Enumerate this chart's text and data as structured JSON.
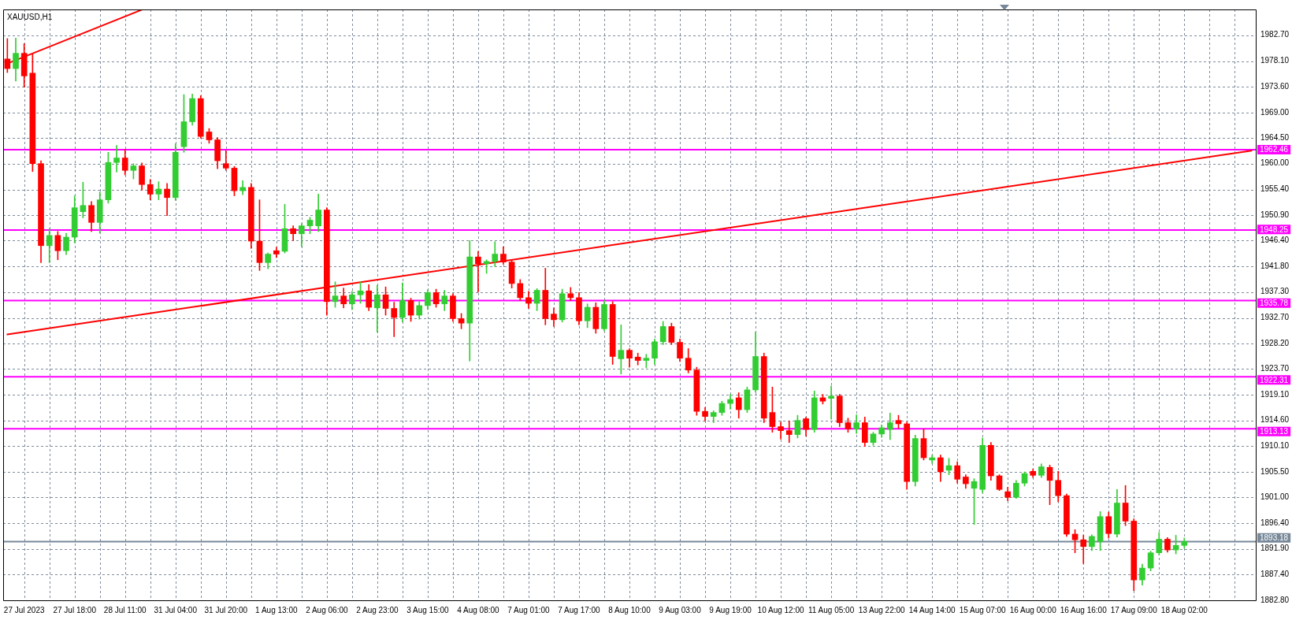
{
  "chart_data": {
    "type": "candlestick",
    "title": "XAUUSD,H1",
    "categories": [
      null,
      null,
      "27 Jul 2023",
      null,
      null,
      null,
      null,
      null,
      "27 Jul 18:00",
      null,
      null,
      null,
      null,
      null,
      "28 Jul 11:00",
      null,
      null,
      null,
      null,
      null,
      "31 Jul 04:00",
      null,
      null,
      null,
      null,
      null,
      "31 Jul 20:00",
      null,
      null,
      null,
      null,
      null,
      "1 Aug 13:00",
      null,
      null,
      null,
      null,
      null,
      "2 Aug 06:00",
      null,
      null,
      null,
      null,
      null,
      "2 Aug 23:00",
      null,
      null,
      null,
      null,
      null,
      "3 Aug 15:00",
      null,
      null,
      null,
      null,
      null,
      "4 Aug 08:00",
      null,
      null,
      null,
      null,
      null,
      "7 Aug 01:00",
      null,
      null,
      null,
      null,
      null,
      "7 Aug 17:00",
      null,
      null,
      null,
      null,
      null,
      "8 Aug 10:00",
      null,
      null,
      null,
      null,
      null,
      "9 Aug 03:00",
      null,
      null,
      null,
      null,
      null,
      "9 Aug 19:00",
      null,
      null,
      null,
      null,
      null,
      "10 Aug 12:00",
      null,
      null,
      null,
      null,
      null,
      "11 Aug 05:00",
      null,
      null,
      null,
      null,
      null,
      "13 Aug 22:00",
      null,
      null,
      null,
      null,
      null,
      "14 Aug 14:00",
      null,
      null,
      null,
      null,
      null,
      "15 Aug 07:00",
      null,
      null,
      null,
      null,
      null,
      "16 Aug 00:00",
      null,
      null,
      null,
      null,
      null,
      "16 Aug 16:00",
      null,
      null,
      null,
      null,
      null,
      "17 Aug 09:00",
      null,
      null,
      null,
      null,
      null,
      "18 Aug 02:00",
      null,
      null,
      null,
      null,
      null,
      null,
      null,
      null
    ],
    "ohlc": [
      [
        1978.5,
        1982.1,
        1976.1,
        1976.8
      ],
      [
        1976.8,
        1982.2,
        1974.6,
        1979.5
      ],
      [
        1979.5,
        1981.2,
        1973.5,
        1975.5
      ],
      [
        1976.0,
        1979.4,
        1958.6,
        1960.0
      ],
      [
        1960.0,
        1960.5,
        1942.5,
        1945.5
      ],
      [
        1945.5,
        1948.5,
        1942.5,
        1947.3
      ],
      [
        1947.3,
        1948.0,
        1943.0,
        1944.6
      ],
      [
        1944.6,
        1947.7,
        1943.9,
        1947.0
      ],
      [
        1947.0,
        1954.3,
        1946.0,
        1952.2
      ],
      [
        1951.5,
        1956.7,
        1950.4,
        1952.6
      ],
      [
        1952.6,
        1953.3,
        1948.0,
        1949.6
      ],
      [
        1949.6,
        1955.0,
        1947.7,
        1953.6
      ],
      [
        1953.6,
        1962.0,
        1953.0,
        1960.2
      ],
      [
        1960.2,
        1963.2,
        1958.5,
        1961.0
      ],
      [
        1961.0,
        1962.5,
        1958.0,
        1958.8
      ],
      [
        1958.8,
        1960.0,
        1957.3,
        1959.6
      ],
      [
        1959.6,
        1960.1,
        1955.3,
        1956.3
      ],
      [
        1956.3,
        1957.2,
        1953.6,
        1954.6
      ],
      [
        1954.6,
        1956.8,
        1953.6,
        1955.5
      ],
      [
        1955.5,
        1956.5,
        1950.8,
        1954.0
      ],
      [
        1954.0,
        1963.5,
        1953.5,
        1962.0
      ],
      [
        1963.0,
        1972.2,
        1962.0,
        1967.4
      ],
      [
        1967.4,
        1972.3,
        1966.8,
        1971.5
      ],
      [
        1971.5,
        1972.0,
        1964.5,
        1964.8
      ],
      [
        1965.6,
        1966.2,
        1963.6,
        1964.2
      ],
      [
        1964.2,
        1964.6,
        1959.1,
        1960.5
      ],
      [
        1960.0,
        1962.3,
        1958.8,
        1959.2
      ],
      [
        1959.2,
        1959.5,
        1954.3,
        1955.2
      ],
      [
        1955.2,
        1957.0,
        1954.5,
        1955.8
      ],
      [
        1955.8,
        1956.5,
        1945.0,
        1946.3
      ],
      [
        1946.3,
        1953.6,
        1941.1,
        1942.5
      ],
      [
        1942.5,
        1944.2,
        1941.4,
        1944.0
      ],
      [
        1944.6,
        1945.2,
        1943.4,
        1944.0
      ],
      [
        1944.5,
        1952.8,
        1944.2,
        1948.5
      ],
      [
        1948.5,
        1949.0,
        1946.4,
        1947.6
      ],
      [
        1947.6,
        1949.4,
        1945.3,
        1949.0
      ],
      [
        1949.0,
        1950.5,
        1947.6,
        1950.0
      ],
      [
        1949.0,
        1954.6,
        1948.0,
        1951.8
      ],
      [
        1951.8,
        1952.2,
        1933.2,
        1935.6
      ],
      [
        1935.6,
        1939.1,
        1934.6,
        1936.6
      ],
      [
        1936.6,
        1938.0,
        1934.5,
        1935.2
      ],
      [
        1935.2,
        1937.4,
        1934.2,
        1936.8
      ],
      [
        1936.8,
        1939.1,
        1935.3,
        1937.5
      ],
      [
        1937.5,
        1938.6,
        1934.0,
        1934.6
      ],
      [
        1934.5,
        1938.5,
        1930.2,
        1936.8
      ],
      [
        1936.8,
        1938.2,
        1933.2,
        1934.4
      ],
      [
        1934.4,
        1935.5,
        1929.4,
        1932.8
      ],
      [
        1932.8,
        1938.9,
        1932.0,
        1935.8
      ],
      [
        1935.8,
        1936.2,
        1932.1,
        1933.2
      ],
      [
        1933.2,
        1935.6,
        1932.5,
        1934.9
      ],
      [
        1934.9,
        1937.7,
        1934.2,
        1937.2
      ],
      [
        1937.2,
        1937.8,
        1934.6,
        1935.2
      ],
      [
        1935.2,
        1937.6,
        1934.0,
        1936.6
      ],
      [
        1936.6,
        1937.0,
        1932.1,
        1932.6
      ],
      [
        1932.6,
        1933.5,
        1930.8,
        1931.8
      ],
      [
        1931.8,
        1946.4,
        1925.1,
        1943.5
      ],
      [
        1943.5,
        1944.5,
        1937.3,
        1942.3
      ],
      [
        1942.3,
        1943.0,
        1940.6,
        1942.7
      ],
      [
        1942.7,
        1946.2,
        1941.8,
        1944.0
      ],
      [
        1944.0,
        1945.3,
        1942.2,
        1942.6
      ],
      [
        1942.6,
        1943.0,
        1938.0,
        1938.8
      ],
      [
        1938.8,
        1939.5,
        1935.8,
        1936.3
      ],
      [
        1936.3,
        1937.4,
        1934.4,
        1935.3
      ],
      [
        1935.3,
        1937.9,
        1934.0,
        1937.6
      ],
      [
        1937.6,
        1941.5,
        1931.5,
        1932.6
      ],
      [
        1933.4,
        1934.5,
        1931.2,
        1932.4
      ],
      [
        1932.4,
        1937.8,
        1932.0,
        1937.0
      ],
      [
        1937.0,
        1938.1,
        1935.8,
        1936.3
      ],
      [
        1936.3,
        1937.2,
        1931.5,
        1932.2
      ],
      [
        1932.2,
        1935.2,
        1931.0,
        1934.6
      ],
      [
        1934.6,
        1935.4,
        1930.0,
        1930.8
      ],
      [
        1930.8,
        1935.8,
        1930.4,
        1935.1
      ],
      [
        1935.1,
        1935.6,
        1924.5,
        1925.9
      ],
      [
        1925.5,
        1931.5,
        1922.8,
        1927.0
      ],
      [
        1927.0,
        1927.3,
        1924.0,
        1925.6
      ],
      [
        1925.8,
        1926.5,
        1924.4,
        1925.2
      ],
      [
        1925.2,
        1926.3,
        1923.9,
        1925.6
      ],
      [
        1925.6,
        1929.0,
        1924.5,
        1928.5
      ],
      [
        1928.5,
        1932.1,
        1928.0,
        1931.2
      ],
      [
        1931.2,
        1931.8,
        1928.0,
        1928.4
      ],
      [
        1928.4,
        1929.0,
        1925.0,
        1925.6
      ],
      [
        1925.6,
        1927.3,
        1923.0,
        1923.5
      ],
      [
        1923.5,
        1924.0,
        1915.5,
        1916.2
      ],
      [
        1916.2,
        1916.9,
        1914.5,
        1915.3
      ],
      [
        1915.3,
        1916.3,
        1914.2,
        1916.0
      ],
      [
        1916.0,
        1918.0,
        1915.5,
        1917.6
      ],
      [
        1917.6,
        1919.2,
        1916.6,
        1918.3
      ],
      [
        1918.6,
        1919.5,
        1915.0,
        1916.5
      ],
      [
        1916.5,
        1920.5,
        1916.0,
        1920.0
      ],
      [
        1920.0,
        1930.2,
        1919.6,
        1925.9
      ],
      [
        1925.9,
        1926.5,
        1914.2,
        1915.0
      ],
      [
        1916.0,
        1920.5,
        1912.5,
        1913.5
      ],
      [
        1913.5,
        1914.3,
        1911.3,
        1912.8
      ],
      [
        1912.8,
        1914.5,
        1910.7,
        1912.1
      ],
      [
        1912.1,
        1915.5,
        1911.5,
        1914.6
      ],
      [
        1914.9,
        1915.2,
        1911.8,
        1913.0
      ],
      [
        1913.0,
        1919.8,
        1912.5,
        1918.6
      ],
      [
        1918.6,
        1919.2,
        1917.5,
        1918.0
      ],
      [
        1918.5,
        1920.7,
        1914.8,
        1918.9
      ],
      [
        1918.9,
        1919.2,
        1913.5,
        1914.2
      ],
      [
        1914.2,
        1915.0,
        1912.5,
        1913.1
      ],
      [
        1913.1,
        1915.6,
        1912.3,
        1914.2
      ],
      [
        1914.2,
        1915.2,
        1910.0,
        1910.7
      ],
      [
        1910.7,
        1912.5,
        1910.2,
        1912.2
      ],
      [
        1912.2,
        1913.8,
        1911.6,
        1913.3
      ],
      [
        1913.0,
        1915.9,
        1911.2,
        1914.2
      ],
      [
        1914.6,
        1915.5,
        1913.2,
        1914.0
      ],
      [
        1914.0,
        1914.3,
        1902.4,
        1903.8
      ],
      [
        1903.8,
        1912.0,
        1903.0,
        1911.4
      ],
      [
        1911.4,
        1913.1,
        1907.6,
        1908.0
      ],
      [
        1907.6,
        1908.5,
        1907.0,
        1908.0
      ],
      [
        1908.0,
        1908.5,
        1903.8,
        1905.5
      ],
      [
        1905.8,
        1907.9,
        1905.0,
        1906.6
      ],
      [
        1906.6,
        1907.3,
        1903.5,
        1904.2
      ],
      [
        1904.6,
        1905.0,
        1902.6,
        1903.4
      ],
      [
        1902.6,
        1904.3,
        1896.2,
        1903.8
      ],
      [
        1902.4,
        1911.5,
        1901.8,
        1910.2
      ],
      [
        1910.2,
        1910.7,
        1904.0,
        1904.8
      ],
      [
        1904.8,
        1905.0,
        1902.2,
        1902.4
      ],
      [
        1902.0,
        1902.8,
        1900.4,
        1901.0
      ],
      [
        1901.0,
        1904.0,
        1900.8,
        1903.5
      ],
      [
        1903.5,
        1905.5,
        1903.0,
        1905.2
      ],
      [
        1905.6,
        1906.0,
        1904.5,
        1904.9
      ],
      [
        1904.9,
        1906.9,
        1904.5,
        1906.4
      ],
      [
        1906.3,
        1906.7,
        1899.7,
        1904.0
      ],
      [
        1904.0,
        1905.6,
        1900.2,
        1901.3
      ],
      [
        1901.3,
        1901.6,
        1894.1,
        1894.5
      ],
      [
        1894.5,
        1895.3,
        1891.2,
        1893.5
      ],
      [
        1893.5,
        1894.3,
        1889.3,
        1892.3
      ],
      [
        1892.3,
        1894.4,
        1891.6,
        1894.1
      ],
      [
        1893.2,
        1898.5,
        1891.6,
        1897.6
      ],
      [
        1897.6,
        1898.4,
        1893.8,
        1894.6
      ],
      [
        1894.5,
        1902.4,
        1894.0,
        1900.0
      ],
      [
        1900.0,
        1903.1,
        1896.0,
        1896.8
      ],
      [
        1896.8,
        1897.2,
        1884.5,
        1886.4
      ],
      [
        1886.4,
        1889.2,
        1885.5,
        1888.5
      ],
      [
        1888.5,
        1891.5,
        1888.0,
        1891.2
      ],
      [
        1891.2,
        1894.8,
        1890.8,
        1893.6
      ],
      [
        1893.6,
        1893.9,
        1891.3,
        1891.7
      ],
      [
        1891.7,
        1894.3,
        1891.0,
        1892.5
      ],
      [
        1892.5,
        1893.8,
        1892.0,
        1893.18
      ],
      null,
      null,
      null,
      null,
      null,
      null,
      null,
      null
    ],
    "colors": [
      "#ff0000",
      "#32cd32",
      "#ff0000",
      "#ff0000",
      "#ff0000",
      "#32cd32",
      "#ff0000",
      "#32cd32",
      "#32cd32",
      "#32cd32",
      "#ff0000",
      "#32cd32",
      "#32cd32",
      "#32cd32",
      "#ff0000",
      "#32cd32",
      "#ff0000",
      "#ff0000",
      "#32cd32",
      "#ff0000",
      "#32cd32",
      "#32cd32",
      "#32cd32",
      "#ff0000",
      "#ff0000",
      "#ff0000",
      "#ff0000",
      "#ff0000",
      "#32cd32",
      "#ff0000",
      "#ff0000",
      "#32cd32",
      "#ff0000",
      "#32cd32",
      "#ff0000",
      "#32cd32",
      "#32cd32",
      "#32cd32",
      "#ff0000",
      "#32cd32",
      "#ff0000",
      "#32cd32",
      "#32cd32",
      "#ff0000",
      "#32cd32",
      "#ff0000",
      "#ff0000",
      "#32cd32",
      "#ff0000",
      "#32cd32",
      "#32cd32",
      "#ff0000",
      "#32cd32",
      "#ff0000",
      "#ff0000",
      "#32cd32",
      "#ff0000",
      "#32cd32",
      "#32cd32",
      "#ff0000",
      "#ff0000",
      "#ff0000",
      "#ff0000",
      "#32cd32",
      "#ff0000",
      "#ff0000",
      "#32cd32",
      "#ff0000",
      "#ff0000",
      "#32cd32",
      "#ff0000",
      "#32cd32",
      "#ff0000",
      "#32cd32",
      "#ff0000",
      "#ff0000",
      "#32cd32",
      "#32cd32",
      "#32cd32",
      "#ff0000",
      "#ff0000",
      "#ff0000",
      "#ff0000",
      "#ff0000",
      "#32cd32",
      "#32cd32",
      "#32cd32",
      "#ff0000",
      "#32cd32",
      "#32cd32",
      "#ff0000",
      "#ff0000",
      "#ff0000",
      "#ff0000",
      "#32cd32",
      "#ff0000",
      "#32cd32",
      "#ff0000",
      "#32cd32",
      "#ff0000",
      "#ff0000",
      "#32cd32",
      "#ff0000",
      "#32cd32",
      "#32cd32",
      "#32cd32",
      "#ff0000",
      "#ff0000",
      "#32cd32",
      "#ff0000",
      "#32cd32",
      "#ff0000",
      "#32cd32",
      "#ff0000",
      "#ff0000",
      "#32cd32",
      "#32cd32",
      "#ff0000",
      "#ff0000",
      "#ff0000",
      "#32cd32",
      "#32cd32",
      "#ff0000",
      "#32cd32",
      "#ff0000",
      "#ff0000",
      "#ff0000",
      "#ff0000",
      "#ff0000",
      "#32cd32",
      "#32cd32",
      "#ff0000",
      "#32cd32",
      "#ff0000",
      "#ff0000",
      "#32cd32",
      "#32cd32",
      "#32cd32",
      "#ff0000",
      "#32cd32",
      "#32cd32",
      null,
      null,
      null,
      null,
      null,
      null,
      null,
      null
    ],
    "series": [
      {
        "type": "line",
        "color": "#ff0000",
        "values": [
          1977.7,
          null,
          null,
          null,
          null,
          null,
          null,
          null,
          null,
          null,
          null,
          null,
          null,
          null,
          null,
          null,
          1987.2,
          null,
          null,
          null,
          null,
          null,
          null,
          null,
          null,
          null,
          null,
          null,
          null,
          null,
          null,
          null,
          null,
          null,
          null,
          null,
          null,
          null,
          null,
          null,
          null,
          null,
          null,
          null,
          null,
          null,
          null,
          null,
          null,
          null,
          null,
          null,
          null,
          null,
          null,
          null,
          null,
          null,
          null,
          null,
          null,
          null,
          null,
          null,
          null,
          null,
          null,
          null,
          null,
          null,
          null,
          null,
          null,
          null,
          null,
          null,
          null,
          null,
          null,
          null,
          null,
          null,
          null,
          null,
          null,
          null,
          null,
          null,
          null,
          null,
          null,
          null,
          null,
          null,
          null,
          null,
          null,
          null,
          null,
          null,
          null,
          null,
          null,
          null,
          null,
          null,
          null,
          null,
          null,
          null,
          null,
          null,
          null,
          null,
          null,
          null,
          null,
          null,
          null,
          null,
          null,
          null,
          null,
          null,
          null,
          null,
          null,
          null,
          null,
          null,
          null,
          null,
          null,
          null,
          null,
          null,
          null,
          null,
          null,
          null,
          null,
          null,
          null,
          null,
          null,
          null,
          null,
          null,
          null
        ]
      },
      {
        "type": "line",
        "color": "#ff0000",
        "values": [
          1929.8,
          null,
          null,
          null,
          null,
          null,
          null,
          null,
          null,
          null,
          null,
          null,
          null,
          null,
          null,
          null,
          null,
          null,
          null,
          null,
          null,
          null,
          null,
          null,
          null,
          null,
          null,
          null,
          null,
          null,
          null,
          null,
          null,
          null,
          null,
          null,
          null,
          null,
          null,
          null,
          null,
          null,
          null,
          null,
          null,
          null,
          null,
          null,
          null,
          null,
          null,
          null,
          null,
          null,
          null,
          null,
          null,
          null,
          null,
          null,
          null,
          null,
          null,
          null,
          null,
          null,
          null,
          null,
          null,
          null,
          null,
          null,
          null,
          null,
          null,
          null,
          null,
          null,
          null,
          null,
          null,
          null,
          null,
          null,
          null,
          null,
          null,
          null,
          null,
          null,
          null,
          null,
          null,
          null,
          null,
          null,
          null,
          null,
          null,
          null,
          null,
          null,
          null,
          null,
          null,
          null,
          null,
          null,
          null,
          null,
          null,
          null,
          null,
          null,
          null,
          null,
          null,
          null,
          null,
          null,
          null,
          null,
          null,
          null,
          null,
          null,
          null,
          null,
          null,
          null,
          null,
          null,
          null,
          null,
          null,
          null,
          null,
          null,
          null,
          null,
          null,
          null,
          null,
          null,
          null,
          null,
          null,
          null,
          1962.3
        ]
      }
    ],
    "ylim": [
      1882.8,
      1987.25
    ],
    "yticks": [
      {
        "value": 1882.8,
        "label": "1882.80"
      },
      {
        "value": 1887.4,
        "label": "1887.40"
      },
      {
        "value": 1891.9,
        "label": "1891.90"
      },
      {
        "value": 1896.4,
        "label": "1896.40"
      },
      {
        "value": 1901,
        "label": "1901.00"
      },
      {
        "value": 1905.5,
        "label": "1905.50"
      },
      {
        "value": 1910.1,
        "label": "1910.10"
      },
      {
        "value": 1914.6,
        "label": "1914.60"
      },
      {
        "value": 1919.1,
        "label": "1919.10"
      },
      {
        "value": 1923.7,
        "label": "1923.70"
      },
      {
        "value": 1928.2,
        "label": "1928.20"
      },
      {
        "value": 1932.7,
        "label": "1932.70"
      },
      {
        "value": 1937.3,
        "label": "1937.30"
      },
      {
        "value": 1941.8,
        "label": "1941.80"
      },
      {
        "value": 1946.4,
        "label": "1946.40"
      },
      {
        "value": 1950.9,
        "label": "1950.90"
      },
      {
        "value": 1955.4,
        "label": "1955.40"
      },
      {
        "value": 1960,
        "label": "1960.00"
      },
      {
        "value": 1964.5,
        "label": "1964.50"
      },
      {
        "value": 1969,
        "label": "1969.00"
      },
      {
        "value": 1973.6,
        "label": "1973.60"
      },
      {
        "value": 1978.1,
        "label": "1978.10"
      },
      {
        "value": 1982.7,
        "label": "1982.70"
      }
    ],
    "ref_lines": [
      {
        "axis": "y",
        "value": 1962.46,
        "label": "1962.46",
        "color": "#ff00ff"
      },
      {
        "axis": "y",
        "value": 1948.25,
        "label": "1948.25",
        "color": "#ff00ff"
      },
      {
        "axis": "y",
        "value": 1935.78,
        "label": "1935.78",
        "color": "#ff00ff"
      },
      {
        "axis": "y",
        "value": 1922.31,
        "label": "1922.31",
        "color": "#ff00ff"
      },
      {
        "axis": "y",
        "value": 1913.13,
        "label": "1913.13",
        "color": "#ff00ff"
      },
      {
        "axis": "y",
        "value": 1893.18,
        "label": "1893.18",
        "color": "#778899"
      }
    ],
    "grid": true
  }
}
